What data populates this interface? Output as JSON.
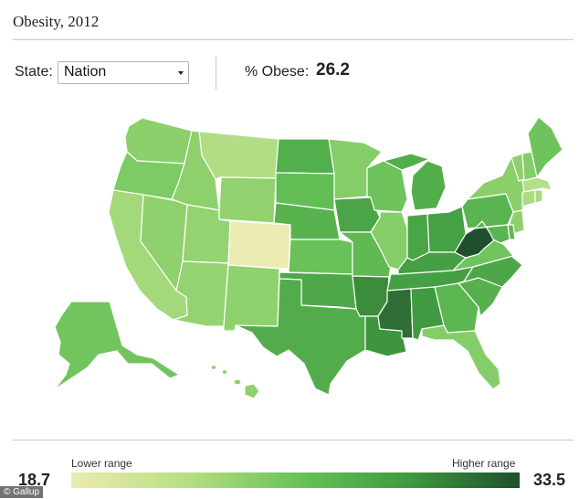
{
  "header": {
    "title": "Obesity, 2012"
  },
  "controls": {
    "state_label": "State:",
    "state_selected": "Nation",
    "stat_label": "% Obese:",
    "stat_value": "26.2"
  },
  "map": {
    "states": [
      {
        "name": "Washington",
        "value": 25.0,
        "color": "#8bd06b"
      },
      {
        "name": "Oregon",
        "value": 26.0,
        "color": "#7ccb64"
      },
      {
        "name": "California",
        "value": 23.0,
        "color": "#a3d97b"
      },
      {
        "name": "Nevada",
        "value": 25.0,
        "color": "#8fd16d"
      },
      {
        "name": "Idaho",
        "value": 25.5,
        "color": "#8ed06c"
      },
      {
        "name": "Montana",
        "value": 22.0,
        "color": "#b2dd85"
      },
      {
        "name": "Wyoming",
        "value": 24.5,
        "color": "#91d26e"
      },
      {
        "name": "Utah",
        "value": 24.0,
        "color": "#95d370"
      },
      {
        "name": "Arizona",
        "value": 24.5,
        "color": "#95d370"
      },
      {
        "name": "Colorado",
        "value": 18.7,
        "color": "#ecebb2"
      },
      {
        "name": "New Mexico",
        "value": 25.0,
        "color": "#8fd16d"
      },
      {
        "name": "North Dakota",
        "value": 29.0,
        "color": "#52b04c"
      },
      {
        "name": "South Dakota",
        "value": 27.5,
        "color": "#62bd55"
      },
      {
        "name": "Nebraska",
        "value": 28.5,
        "color": "#58b34e"
      },
      {
        "name": "Kansas",
        "value": 27.5,
        "color": "#6ac159"
      },
      {
        "name": "Oklahoma",
        "value": 29.5,
        "color": "#4ea84a"
      },
      {
        "name": "Texas",
        "value": 29.0,
        "color": "#53ac4b"
      },
      {
        "name": "Minnesota",
        "value": 25.5,
        "color": "#84cd68"
      },
      {
        "name": "Iowa",
        "value": 29.5,
        "color": "#4ba548"
      },
      {
        "name": "Missouri",
        "value": 28.0,
        "color": "#60b953"
      },
      {
        "name": "Arkansas",
        "value": 31.0,
        "color": "#3b8d3c"
      },
      {
        "name": "Louisiana",
        "value": 30.5,
        "color": "#3f953e"
      },
      {
        "name": "Wisconsin",
        "value": 27.0,
        "color": "#6ec35c"
      },
      {
        "name": "Illinois",
        "value": 25.5,
        "color": "#86ce69"
      },
      {
        "name": "Michigan",
        "value": 29.0,
        "color": "#52ae4b"
      },
      {
        "name": "Indiana",
        "value": 29.5,
        "color": "#4aa547"
      },
      {
        "name": "Ohio",
        "value": 30.0,
        "color": "#46a045"
      },
      {
        "name": "Kentucky",
        "value": 30.0,
        "color": "#45a045"
      },
      {
        "name": "Tennessee",
        "value": 30.0,
        "color": "#45a045"
      },
      {
        "name": "Mississippi",
        "value": 32.5,
        "color": "#2f6e35"
      },
      {
        "name": "Alabama",
        "value": 30.5,
        "color": "#409a41"
      },
      {
        "name": "Georgia",
        "value": 28.0,
        "color": "#5cb652"
      },
      {
        "name": "Florida",
        "value": 25.5,
        "color": "#85cd69"
      },
      {
        "name": "South Carolina",
        "value": 29.0,
        "color": "#55b04d"
      },
      {
        "name": "North Carolina",
        "value": 29.5,
        "color": "#4da748"
      },
      {
        "name": "Virginia",
        "value": 27.0,
        "color": "#70c45d"
      },
      {
        "name": "West Virginia",
        "value": 33.5,
        "color": "#1f4f2d"
      },
      {
        "name": "Pennsylvania",
        "value": 28.5,
        "color": "#5ab450"
      },
      {
        "name": "New York",
        "value": 25.0,
        "color": "#8bcf6b"
      },
      {
        "name": "Maine",
        "value": 27.0,
        "color": "#6ec35c"
      },
      {
        "name": "Vermont",
        "value": 24.5,
        "color": "#8fd06d"
      },
      {
        "name": "New Hampshire",
        "value": 25.5,
        "color": "#85cd69"
      },
      {
        "name": "Massachusetts",
        "value": 22.0,
        "color": "#b5de89"
      },
      {
        "name": "Connecticut",
        "value": 22.5,
        "color": "#aedb81"
      },
      {
        "name": "Rhode Island",
        "value": 23.0,
        "color": "#a9da7e"
      },
      {
        "name": "New Jersey",
        "value": 25.0,
        "color": "#8fd06d"
      },
      {
        "name": "Delaware",
        "value": 28.0,
        "color": "#5eb853"
      },
      {
        "name": "Maryland",
        "value": 28.0,
        "color": "#5ab450"
      },
      {
        "name": "Alaska",
        "value": 26.5,
        "color": "#72c55e"
      },
      {
        "name": "Hawaii",
        "value": 24.5,
        "color": "#90d16d"
      }
    ]
  },
  "legend": {
    "low_label": "Lower range",
    "high_label": "Higher range",
    "min_value": "18.7",
    "max_value": "33.5",
    "colors": [
      "#ecebb2",
      "#b9e083",
      "#6cc35a",
      "#3f9b3f",
      "#1f4f2d"
    ]
  },
  "credit": "© Gallup"
}
